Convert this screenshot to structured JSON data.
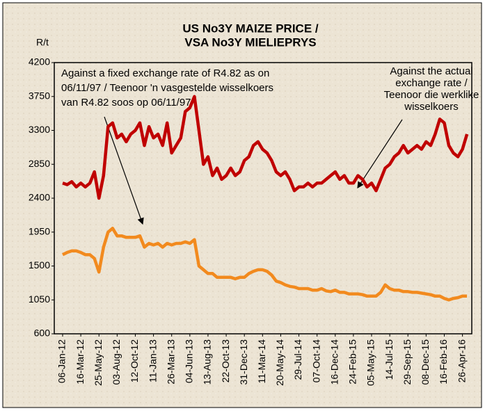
{
  "chart_data": {
    "type": "line",
    "title": [
      "US No3Y MAIZE PRICE /",
      "VSA No3Y MIELIEPRYS"
    ],
    "y_label": "R/t",
    "annotations": [
      [
        "Against a fixed exchange rate of R4.82 as on",
        "06/11/97 /  Teenoor 'n vasgestelde wisselkoers",
        "van R4.82 soos op 06/11/97"
      ],
      [
        "Against the actual",
        "exchange rate /",
        "Teenoor die werklike",
        "wisselkoers"
      ]
    ],
    "categories": [
      "06-Jan-12",
      null,
      null,
      null,
      "16-Mar-12",
      null,
      null,
      null,
      "25-May-12",
      null,
      null,
      null,
      "03-Aug-12",
      null,
      null,
      null,
      "12-Oct-12",
      null,
      null,
      null,
      "11-Jan-13",
      null,
      null,
      null,
      "26-Mar-13",
      null,
      null,
      null,
      "04-Jun-13",
      null,
      null,
      null,
      "13-Aug-13",
      null,
      null,
      null,
      "22-Oct-13",
      null,
      null,
      null,
      "31-Dec-13",
      null,
      null,
      null,
      "11-Mar-14",
      null,
      null,
      null,
      "20-May-14",
      null,
      null,
      null,
      "29-Jul-14",
      null,
      null,
      null,
      "07-Oct-14",
      null,
      null,
      null,
      "16-Dec-14",
      null,
      null,
      null,
      "24-Feb-15",
      null,
      null,
      null,
      "05-May-15",
      null,
      null,
      null,
      "14-Jul-15",
      null,
      null,
      null,
      "29-Sep-15",
      null,
      null,
      null,
      "08-Dec-15",
      null,
      null,
      null,
      "16-Feb-16",
      null,
      null,
      null,
      "26-Apr-16",
      null
    ],
    "series": [
      {
        "color": "#c00000",
        "values": [
          2600,
          2580,
          2620,
          2550,
          2600,
          2550,
          2600,
          2750,
          2400,
          2700,
          3350,
          3400,
          3200,
          3250,
          3150,
          3250,
          3300,
          3400,
          3100,
          3350,
          3200,
          3250,
          3100,
          3400,
          3000,
          3100,
          3200,
          3550,
          3600,
          3750,
          3300,
          2850,
          2950,
          2700,
          2800,
          2650,
          2700,
          2800,
          2700,
          2750,
          2900,
          2950,
          3100,
          3150,
          3050,
          3000,
          2900,
          2750,
          2700,
          2750,
          2650,
          2500,
          2550,
          2550,
          2600,
          2550,
          2600,
          2600,
          2650,
          2700,
          2750,
          2650,
          2700,
          2600,
          2600,
          2700,
          2650,
          2550,
          2600,
          2500,
          2650,
          2800,
          2850,
          2950,
          3000,
          3100,
          3000,
          3050,
          3100,
          3050,
          3150,
          3100,
          3250,
          3450,
          3400,
          3100,
          3000,
          2950,
          3050,
          3250
        ]
      },
      {
        "color": "#f28a1e",
        "values": [
          1650,
          1680,
          1700,
          1700,
          1680,
          1650,
          1650,
          1600,
          1420,
          1750,
          1950,
          2000,
          1900,
          1900,
          1880,
          1880,
          1880,
          1900,
          1750,
          1800,
          1780,
          1800,
          1750,
          1800,
          1780,
          1800,
          1800,
          1820,
          1800,
          1850,
          1500,
          1450,
          1400,
          1400,
          1350,
          1350,
          1350,
          1350,
          1330,
          1350,
          1350,
          1400,
          1430,
          1450,
          1450,
          1430,
          1380,
          1300,
          1280,
          1250,
          1230,
          1220,
          1200,
          1200,
          1200,
          1180,
          1180,
          1200,
          1170,
          1160,
          1180,
          1150,
          1150,
          1130,
          1130,
          1130,
          1120,
          1100,
          1100,
          1100,
          1150,
          1250,
          1200,
          1180,
          1180,
          1160,
          1160,
          1150,
          1150,
          1140,
          1130,
          1120,
          1100,
          1100,
          1070,
          1050,
          1070,
          1080,
          1100,
          1100
        ]
      }
    ],
    "ylim": [
      600,
      4200
    ],
    "yticks": [
      600,
      1050,
      1500,
      1950,
      2400,
      2850,
      3300,
      3750,
      4200
    ],
    "grid": false
  }
}
